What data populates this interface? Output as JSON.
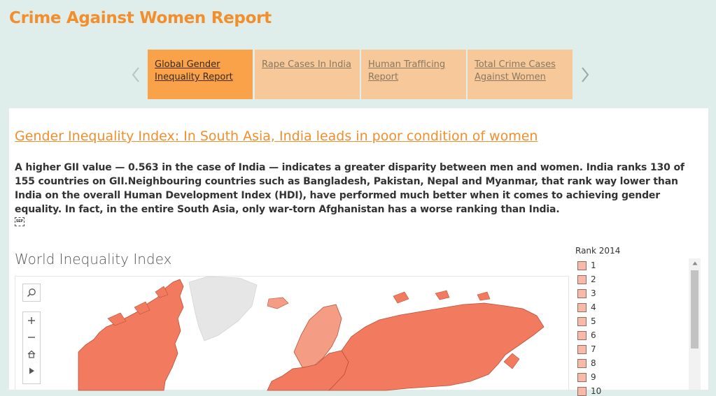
{
  "app": {
    "title": "Crime Against Women Report"
  },
  "nav": {
    "tabs": [
      {
        "label": "Global Gender Inequality Report",
        "active": true
      },
      {
        "label": "Rape Cases In India",
        "active": false
      },
      {
        "label": "Human Trafficing Report",
        "active": false
      },
      {
        "label": "Total Crime Cases Against Women",
        "active": false
      }
    ],
    "prev_icon": "chevron-left-icon",
    "next_icon": "chevron-right-icon"
  },
  "story": {
    "headline": "Gender Inequality Index: In South Asia, India leads in poor condition of women",
    "paragraph": "A higher GII value — 0.563 in the case of India — indicates a greater disparity between men and women. India ranks 130 of 155 countries on GII.Neighbouring countries such as Bangladesh, Pakistan, Nepal and Myanmar, that rank way lower than India on the overall Human Development Index (HDI), have performed much better when it comes to achieving gender equality. In fact, in the entire South Asia, only war-torn Afghanistan has a worse ranking than India.",
    "sep_icon_label": "SEP"
  },
  "map": {
    "title": "World Inequality Index",
    "tools": [
      "search-icon",
      "zoom-in-icon",
      "zoom-out-icon",
      "home-icon",
      "expand-icon"
    ]
  },
  "legend": {
    "title": "Rank 2014",
    "items": [
      "1",
      "2",
      "3",
      "4",
      "5",
      "6",
      "7",
      "8",
      "9",
      "10"
    ]
  },
  "colors": {
    "accent": "#f28e2b",
    "tab_active": "#f9a24a",
    "tab_inactive": "#f7c99a",
    "background": "#dfeeea",
    "map_fill": "#f27a5e",
    "map_fill_light": "#f59c84",
    "map_nodata": "#e6e6e6",
    "legend_swatch": "#f9b9a8"
  }
}
